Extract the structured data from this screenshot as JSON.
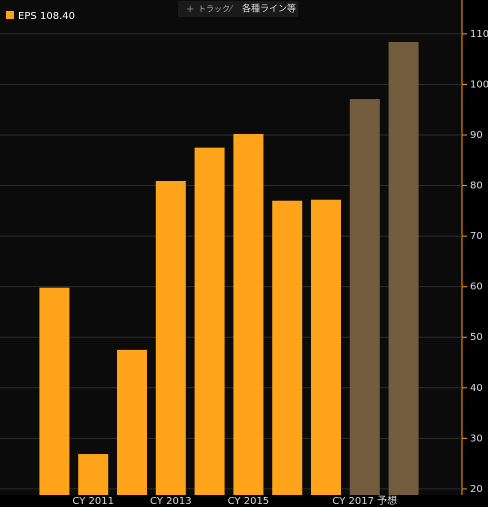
{
  "chart_data": {
    "type": "bar",
    "toolbar": [
      "トラック",
      "各種ライン等"
    ],
    "series": [
      {
        "name": "EPS",
        "values": [
          59.8,
          26.9,
          47.5,
          80.9,
          87.5,
          90.2,
          77.0,
          77.2,
          97.1,
          108.4
        ],
        "colors": [
          "#ffa31a",
          "#ffa31a",
          "#ffa31a",
          "#ffa31a",
          "#ffa31a",
          "#ffa31a",
          "#ffa31a",
          "#ffa31a",
          "#735c3e",
          "#735c3e"
        ]
      }
    ],
    "legend_value": {
      "value": 108.4,
      "label": "108.40"
    },
    "categories": [
      null,
      "CY 2011",
      null,
      "CY 2013",
      null,
      "CY 2015",
      null,
      null,
      "CY 2017 予想",
      null
    ],
    "ylim": [
      18.8,
      116.7
    ],
    "yticks": [
      20,
      30,
      40,
      50,
      60,
      70,
      80,
      90,
      100,
      110
    ],
    "grid": true
  }
}
